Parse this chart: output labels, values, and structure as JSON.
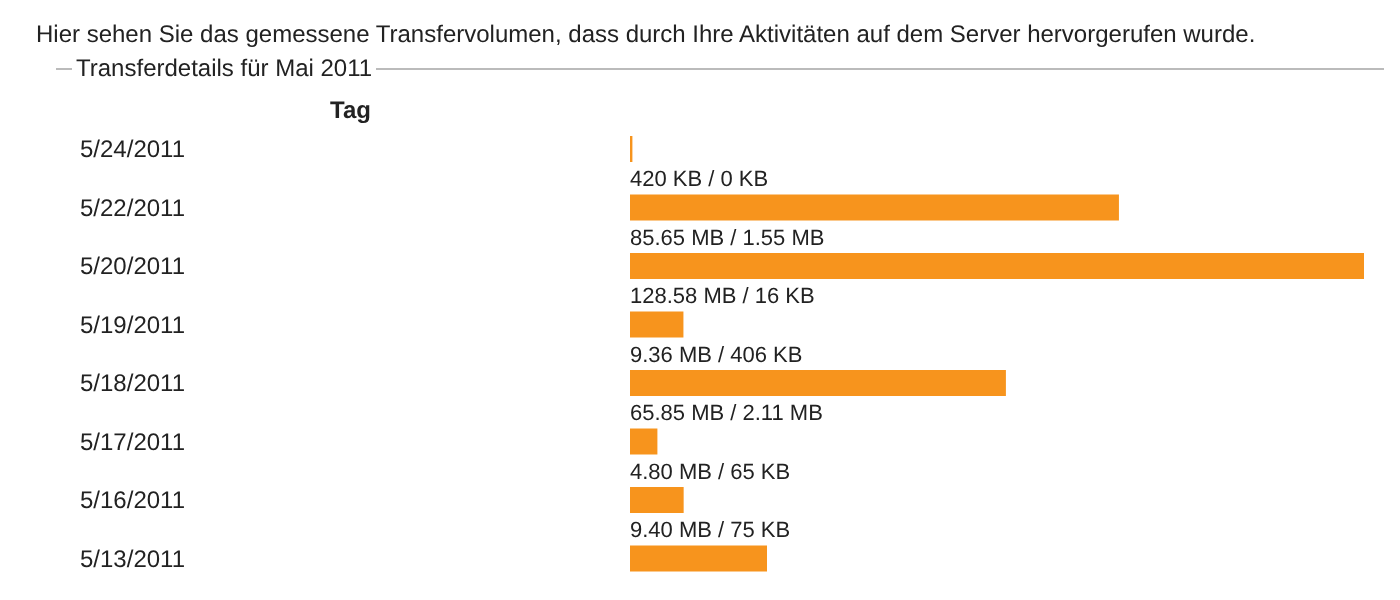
{
  "chart_data": {
    "type": "bar",
    "orientation": "horizontal",
    "title": "Hier sehen Sie das gemessene Transfervolumen, dass durch Ihre Aktivitäten auf dem Server hervorgerufen wurde.",
    "subtitle": "Transferdetails für Mai 2011",
    "ylabel": "Tag",
    "categories": [
      "5/24/2011",
      "5/22/2011",
      "5/20/2011",
      "5/19/2011",
      "5/18/2011",
      "5/17/2011",
      "5/16/2011",
      "5/13/2011"
    ],
    "values": [
      0.42,
      85.65,
      128.58,
      9.36,
      65.85,
      4.8,
      9.4,
      24
    ],
    "color": "#f7941d",
    "value_labels": [
      "420 KB / 0 KB",
      "85.65 MB / 1.55 MB",
      "128.58 MB / 16 KB",
      "9.36 MB / 406 KB",
      "65.85 MB / 2.11 MB",
      "4.80 MB / 65 KB",
      "9.40 MB / 75 KB",
      null
    ]
  }
}
